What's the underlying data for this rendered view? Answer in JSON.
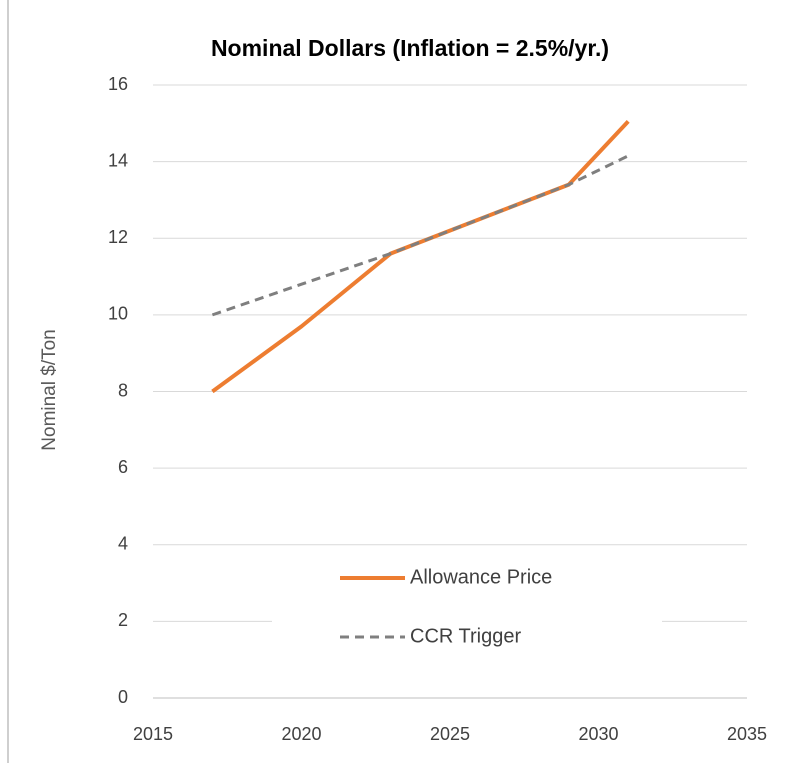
{
  "chart_data": {
    "type": "line",
    "title": "Nominal Dollars (Inflation = 2.5%/yr.)",
    "y_label": "Nominal $/Ton",
    "x": [
      2017,
      2020,
      2023,
      2029,
      2031
    ],
    "series": [
      {
        "name": "Allowance Price",
        "color": "#ed7d31",
        "dash": false,
        "values": [
          8.0,
          9.7,
          11.6,
          13.4,
          15.05
        ]
      },
      {
        "name": "CCR Trigger",
        "color": "#7f7f7f",
        "dash": true,
        "values": [
          10.0,
          10.8,
          11.6,
          13.4,
          14.15
        ]
      }
    ],
    "xlim": [
      2015,
      2035
    ],
    "xticks": [
      2015,
      2020,
      2025,
      2030,
      2035
    ],
    "ylim": [
      0,
      16
    ],
    "yticks": [
      0,
      2,
      4,
      6,
      8,
      10,
      12,
      14,
      16
    ],
    "grid": true,
    "legend": "bottom"
  }
}
